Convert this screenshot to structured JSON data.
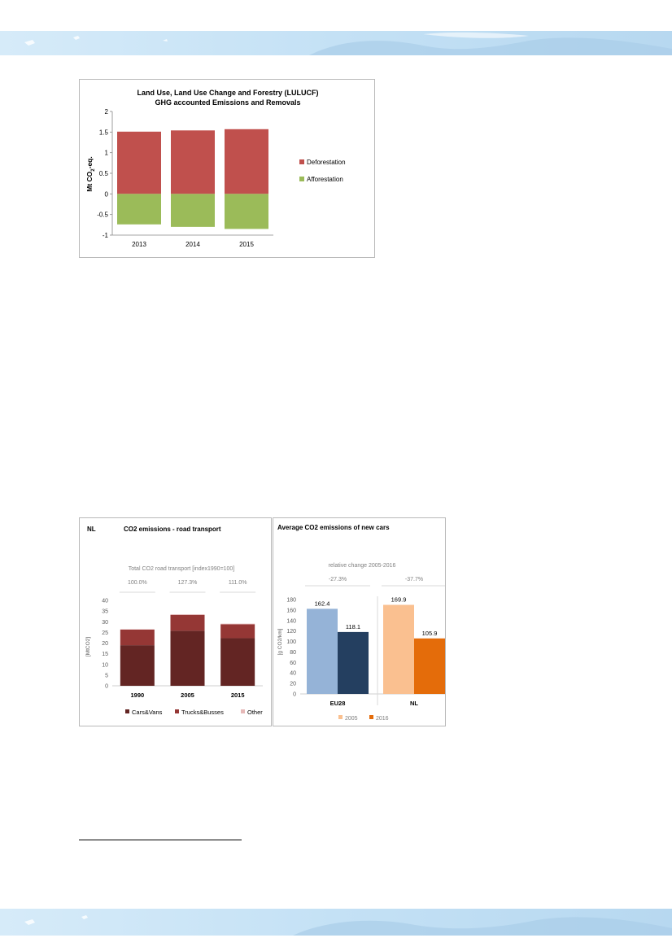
{
  "colors": {
    "deforestation": "#c0504d",
    "afforestation": "#9bbb59",
    "cars_vans": "#632523",
    "trucks_busses": "#953735",
    "other": "#e6b9b8",
    "eu28_2005": "#95b3d7",
    "eu28_2016": "#243f60",
    "nl_2005": "#fac090",
    "nl_2016": "#e46c0a",
    "frame": "#b9b9b9",
    "axis_text": "#595959",
    "banner": "#c9e3f6"
  },
  "chart_data": [
    {
      "id": "lulucf",
      "type": "bar",
      "stacked": true,
      "title": "Land Use, Land Use Change and Forestry (LULUCF)",
      "subtitle": "GHG accounted Emissions and Removals",
      "ylabel": "Mt CO2-eq.",
      "ylim": [
        -1,
        2
      ],
      "yticks": [
        2,
        1.5,
        1,
        0.5,
        0,
        -0.5,
        -1
      ],
      "ytick_labels": [
        "2",
        "1.5",
        "1",
        "0.5",
        "0",
        "-0.5",
        "-1"
      ],
      "categories": [
        "2013",
        "2014",
        "2015"
      ],
      "series": [
        {
          "name": "Deforestation",
          "values": [
            1.51,
            1.54,
            1.57
          ],
          "color": "#c0504d"
        },
        {
          "name": "Afforestation",
          "values": [
            -0.74,
            -0.8,
            -0.85
          ],
          "color": "#9bbb59"
        }
      ],
      "legend_position": "right",
      "grid": false
    },
    {
      "id": "road",
      "type": "bar",
      "stacked": true,
      "corner_label": "NL",
      "title": "CO2 emissions - road transport",
      "annotation_title": "Total CO2 road  transport [index1990=100]",
      "annotations": [
        "100.0%",
        "127.3%",
        "111.0%"
      ],
      "ylabel": "[MtCO2]",
      "ylim": [
        0,
        40
      ],
      "yticks": [
        0,
        5,
        10,
        15,
        20,
        25,
        30,
        35,
        40
      ],
      "ytick_labels": [
        "0",
        "5",
        "10",
        "15",
        "20",
        "25",
        "30",
        "35",
        "40"
      ],
      "categories": [
        "1990",
        "2005",
        "2015"
      ],
      "series": [
        {
          "name": "Cars&Vans",
          "values": [
            19.0,
            25.8,
            22.3
          ],
          "color": "#632523"
        },
        {
          "name": "Trucks&Busses",
          "values": [
            7.3,
            7.4,
            6.5
          ],
          "color": "#953735"
        },
        {
          "name": "Other",
          "values": [
            0.2,
            0.3,
            0.3
          ],
          "color": "#e6b9b8"
        }
      ],
      "legend_position": "bottom",
      "grid": false
    },
    {
      "id": "newcars",
      "type": "bar",
      "title": "Average CO2 emissions of new cars",
      "annotation_title": "relative change 2005-2016",
      "annotations": [
        "-27.3%",
        "-37.7%"
      ],
      "ylabel": "[g CO2/km]",
      "ylim": [
        0,
        180
      ],
      "yticks": [
        0,
        20,
        40,
        60,
        80,
        100,
        120,
        140,
        160,
        180
      ],
      "ytick_labels": [
        "0",
        "20",
        "40",
        "60",
        "80",
        "100",
        "120",
        "140",
        "160",
        "180"
      ],
      "categories": [
        "EU28",
        "NL"
      ],
      "series": [
        {
          "name": "2005",
          "values": [
            162.4,
            169.9
          ],
          "labels": [
            "162.4",
            "169.9"
          ],
          "colors": [
            "#95b3d7",
            "#fac090"
          ]
        },
        {
          "name": "2016",
          "values": [
            118.1,
            105.9
          ],
          "labels": [
            "118.1",
            "105.9"
          ],
          "colors": [
            "#243f60",
            "#e46c0a"
          ]
        }
      ],
      "legend": [
        {
          "name": "2005",
          "color": "#fac090"
        },
        {
          "name": "2016",
          "color": "#e46c0a"
        }
      ],
      "legend_position": "bottom",
      "grid": false
    }
  ]
}
